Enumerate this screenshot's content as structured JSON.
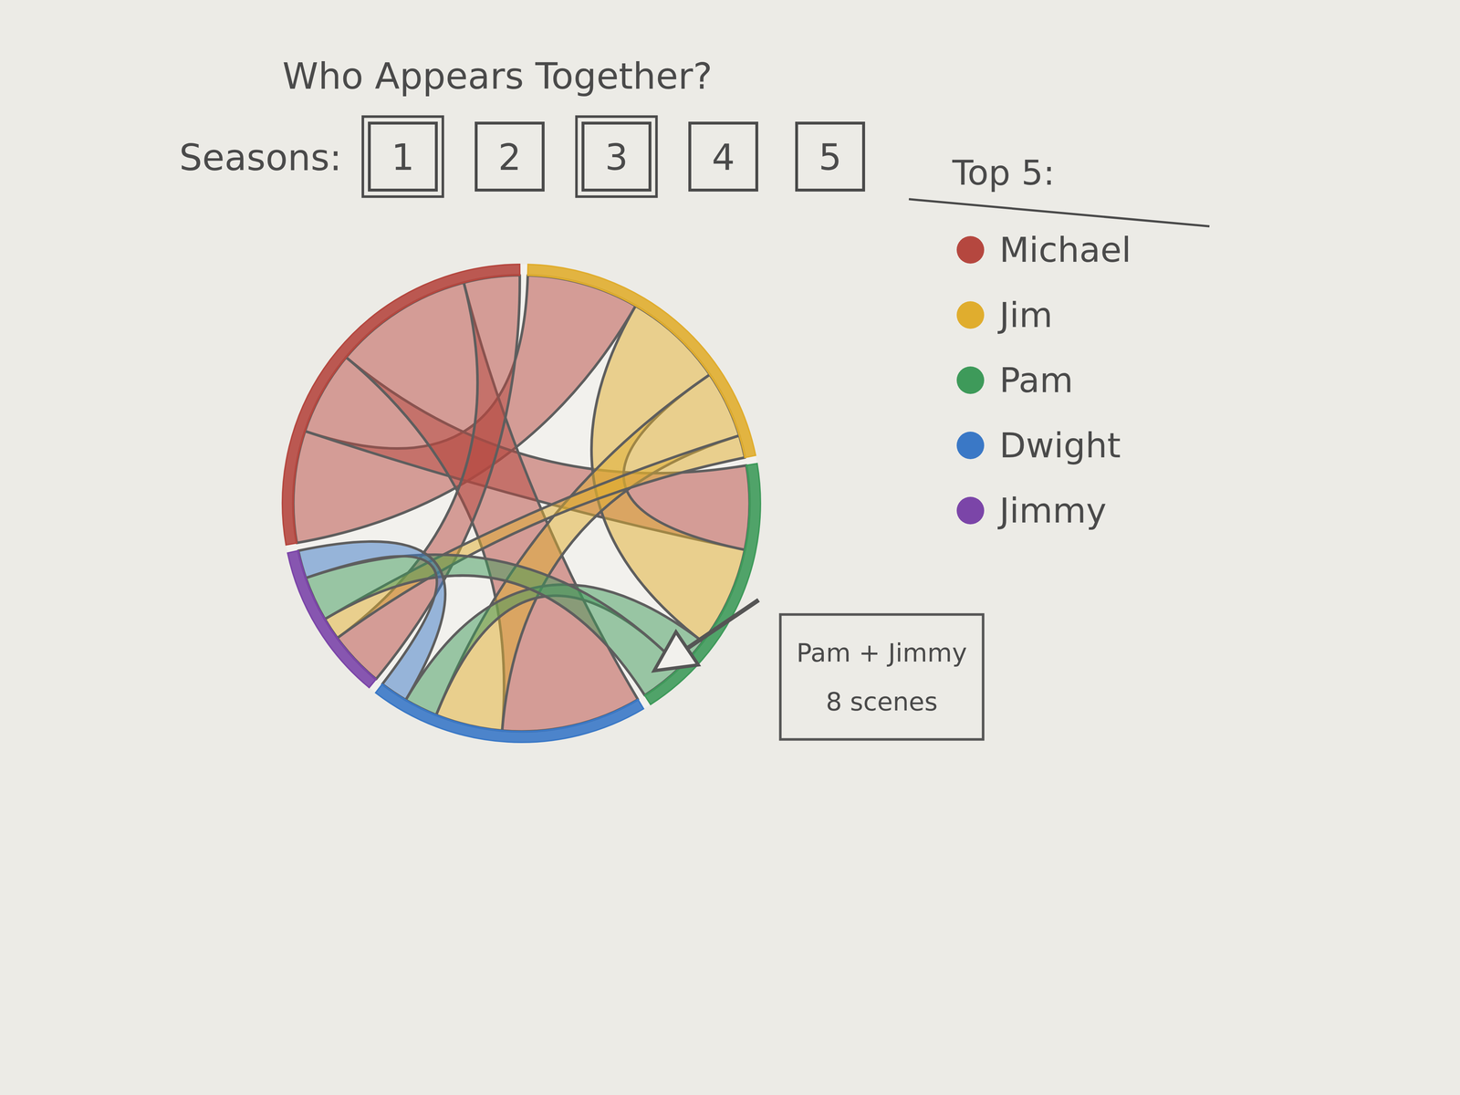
{
  "chart_data": {
    "type": "chord",
    "title": "Who Appears Together?",
    "filter_label": "Seasons:",
    "seasons": [
      1,
      2,
      3,
      4,
      5
    ],
    "selected_seasons": [
      1,
      3
    ],
    "legend_title": "Top 5:",
    "groups": [
      {
        "name": "Michael",
        "color": "#b5473f"
      },
      {
        "name": "Jim",
        "color": "#e0ad2e"
      },
      {
        "name": "Pam",
        "color": "#3e9a5a"
      },
      {
        "name": "Dwight",
        "color": "#3a78c6"
      },
      {
        "name": "Jimmy",
        "color": "#7b45a8"
      }
    ],
    "links": [
      {
        "source": "Michael",
        "target": "Jim",
        "value": 20
      },
      {
        "source": "Michael",
        "target": "Pam",
        "value": 15
      },
      {
        "source": "Michael",
        "target": "Dwight",
        "value": 25
      },
      {
        "source": "Michael",
        "target": "Jimmy",
        "value": 10
      },
      {
        "source": "Jim",
        "target": "Pam",
        "value": 18
      },
      {
        "source": "Jim",
        "target": "Dwight",
        "value": 12
      },
      {
        "source": "Jim",
        "target": "Jimmy",
        "value": 4
      },
      {
        "source": "Pam",
        "target": "Dwight",
        "value": 6
      },
      {
        "source": "Pam",
        "target": "Jimmy",
        "value": 8,
        "value_label": "8 scenes",
        "tooltip": "Pam + Jimmy"
      },
      {
        "source": "Dwight",
        "target": "Jimmy",
        "value": 5
      }
    ]
  }
}
